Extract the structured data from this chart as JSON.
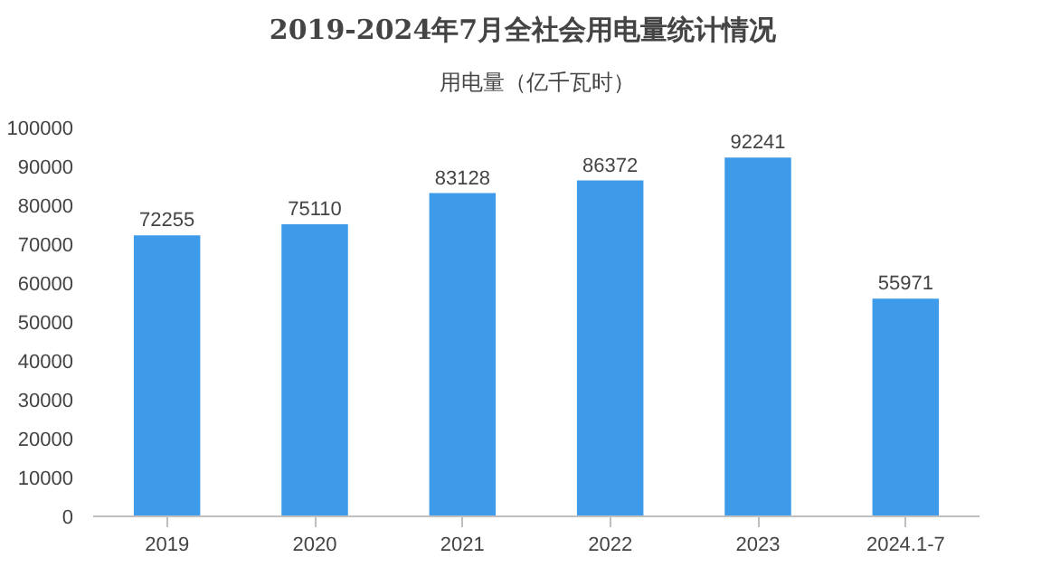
{
  "chart_data": {
    "type": "bar",
    "title": "2019-2024年7月全社会用电量统计情况",
    "categories": [
      "2019",
      "2020",
      "2021",
      "2022",
      "2023",
      "2024.1-7"
    ],
    "series": [
      {
        "name": "用电量（亿千瓦时）",
        "color": "#3d9be9",
        "values": [
          72255,
          75110,
          83128,
          86372,
          92241,
          55971
        ]
      }
    ],
    "ylim": [
      0,
      100000
    ],
    "yticks": [
      0,
      10000,
      20000,
      30000,
      40000,
      50000,
      60000,
      70000,
      80000,
      90000,
      100000
    ],
    "grid": false,
    "legend": "top",
    "data_labels": true
  }
}
